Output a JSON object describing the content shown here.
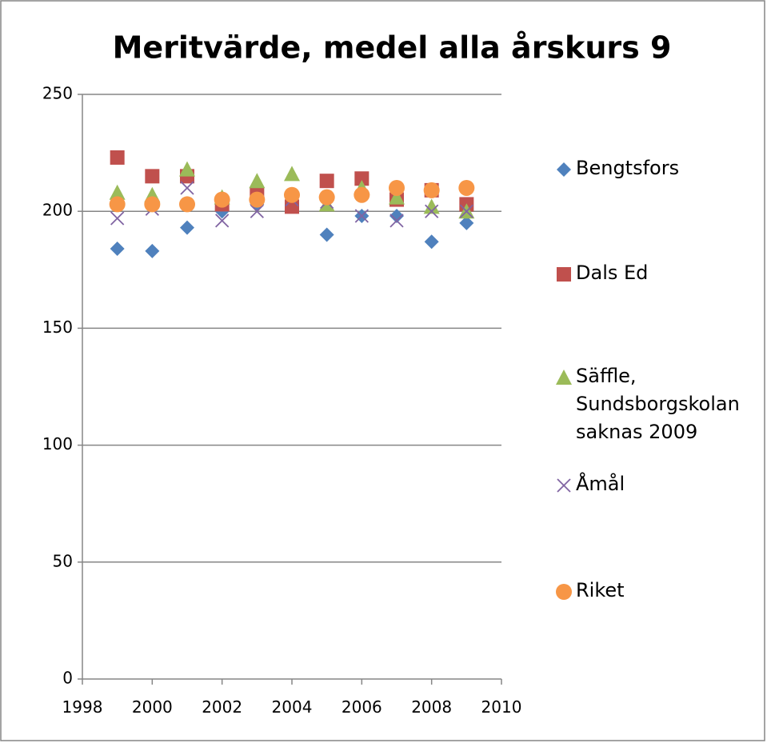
{
  "chart_data": {
    "type": "scatter",
    "title": "Meritvärde, medel alla årskurs 9",
    "xlim": [
      1998,
      2010
    ],
    "xticks": [
      1998,
      2000,
      2002,
      2004,
      2006,
      2008,
      2010
    ],
    "ylim": [
      0,
      250
    ],
    "yticks": [
      0,
      50,
      100,
      150,
      200,
      250
    ],
    "grid": true,
    "legend": "right",
    "x": [
      1999,
      2000,
      2001,
      2002,
      2003,
      2004,
      2005,
      2006,
      2007,
      2008,
      2009
    ],
    "series": [
      {
        "name": "Bengtsfors",
        "color": "#4f81bd",
        "marker": "diamond",
        "values": [
          184,
          183,
          193,
          200,
          203,
          204,
          190,
          198,
          198,
          187,
          195
        ]
      },
      {
        "name": "Dals Ed",
        "color": "#c0504d",
        "marker": "square",
        "values": [
          223,
          215,
          215,
          203,
          207,
          202,
          213,
          214,
          205,
          209,
          203
        ]
      },
      {
        "name": "Säffle, Sundsborgskolan saknas 2009",
        "color": "#9bbb59",
        "marker": "triangle",
        "values": [
          208,
          207,
          218,
          206,
          213,
          216,
          203,
          210,
          206,
          202,
          200
        ]
      },
      {
        "name": "Åmål",
        "color": "#8064a2",
        "marker": "x",
        "values": [
          197,
          201,
          210,
          196,
          200,
          205,
          204,
          198,
          196,
          200,
          200
        ]
      },
      {
        "name": "Riket",
        "color": "#f79646",
        "marker": "circle",
        "values": [
          203,
          203,
          203,
          205,
          205,
          207,
          206,
          207,
          210,
          209,
          210
        ]
      }
    ]
  }
}
